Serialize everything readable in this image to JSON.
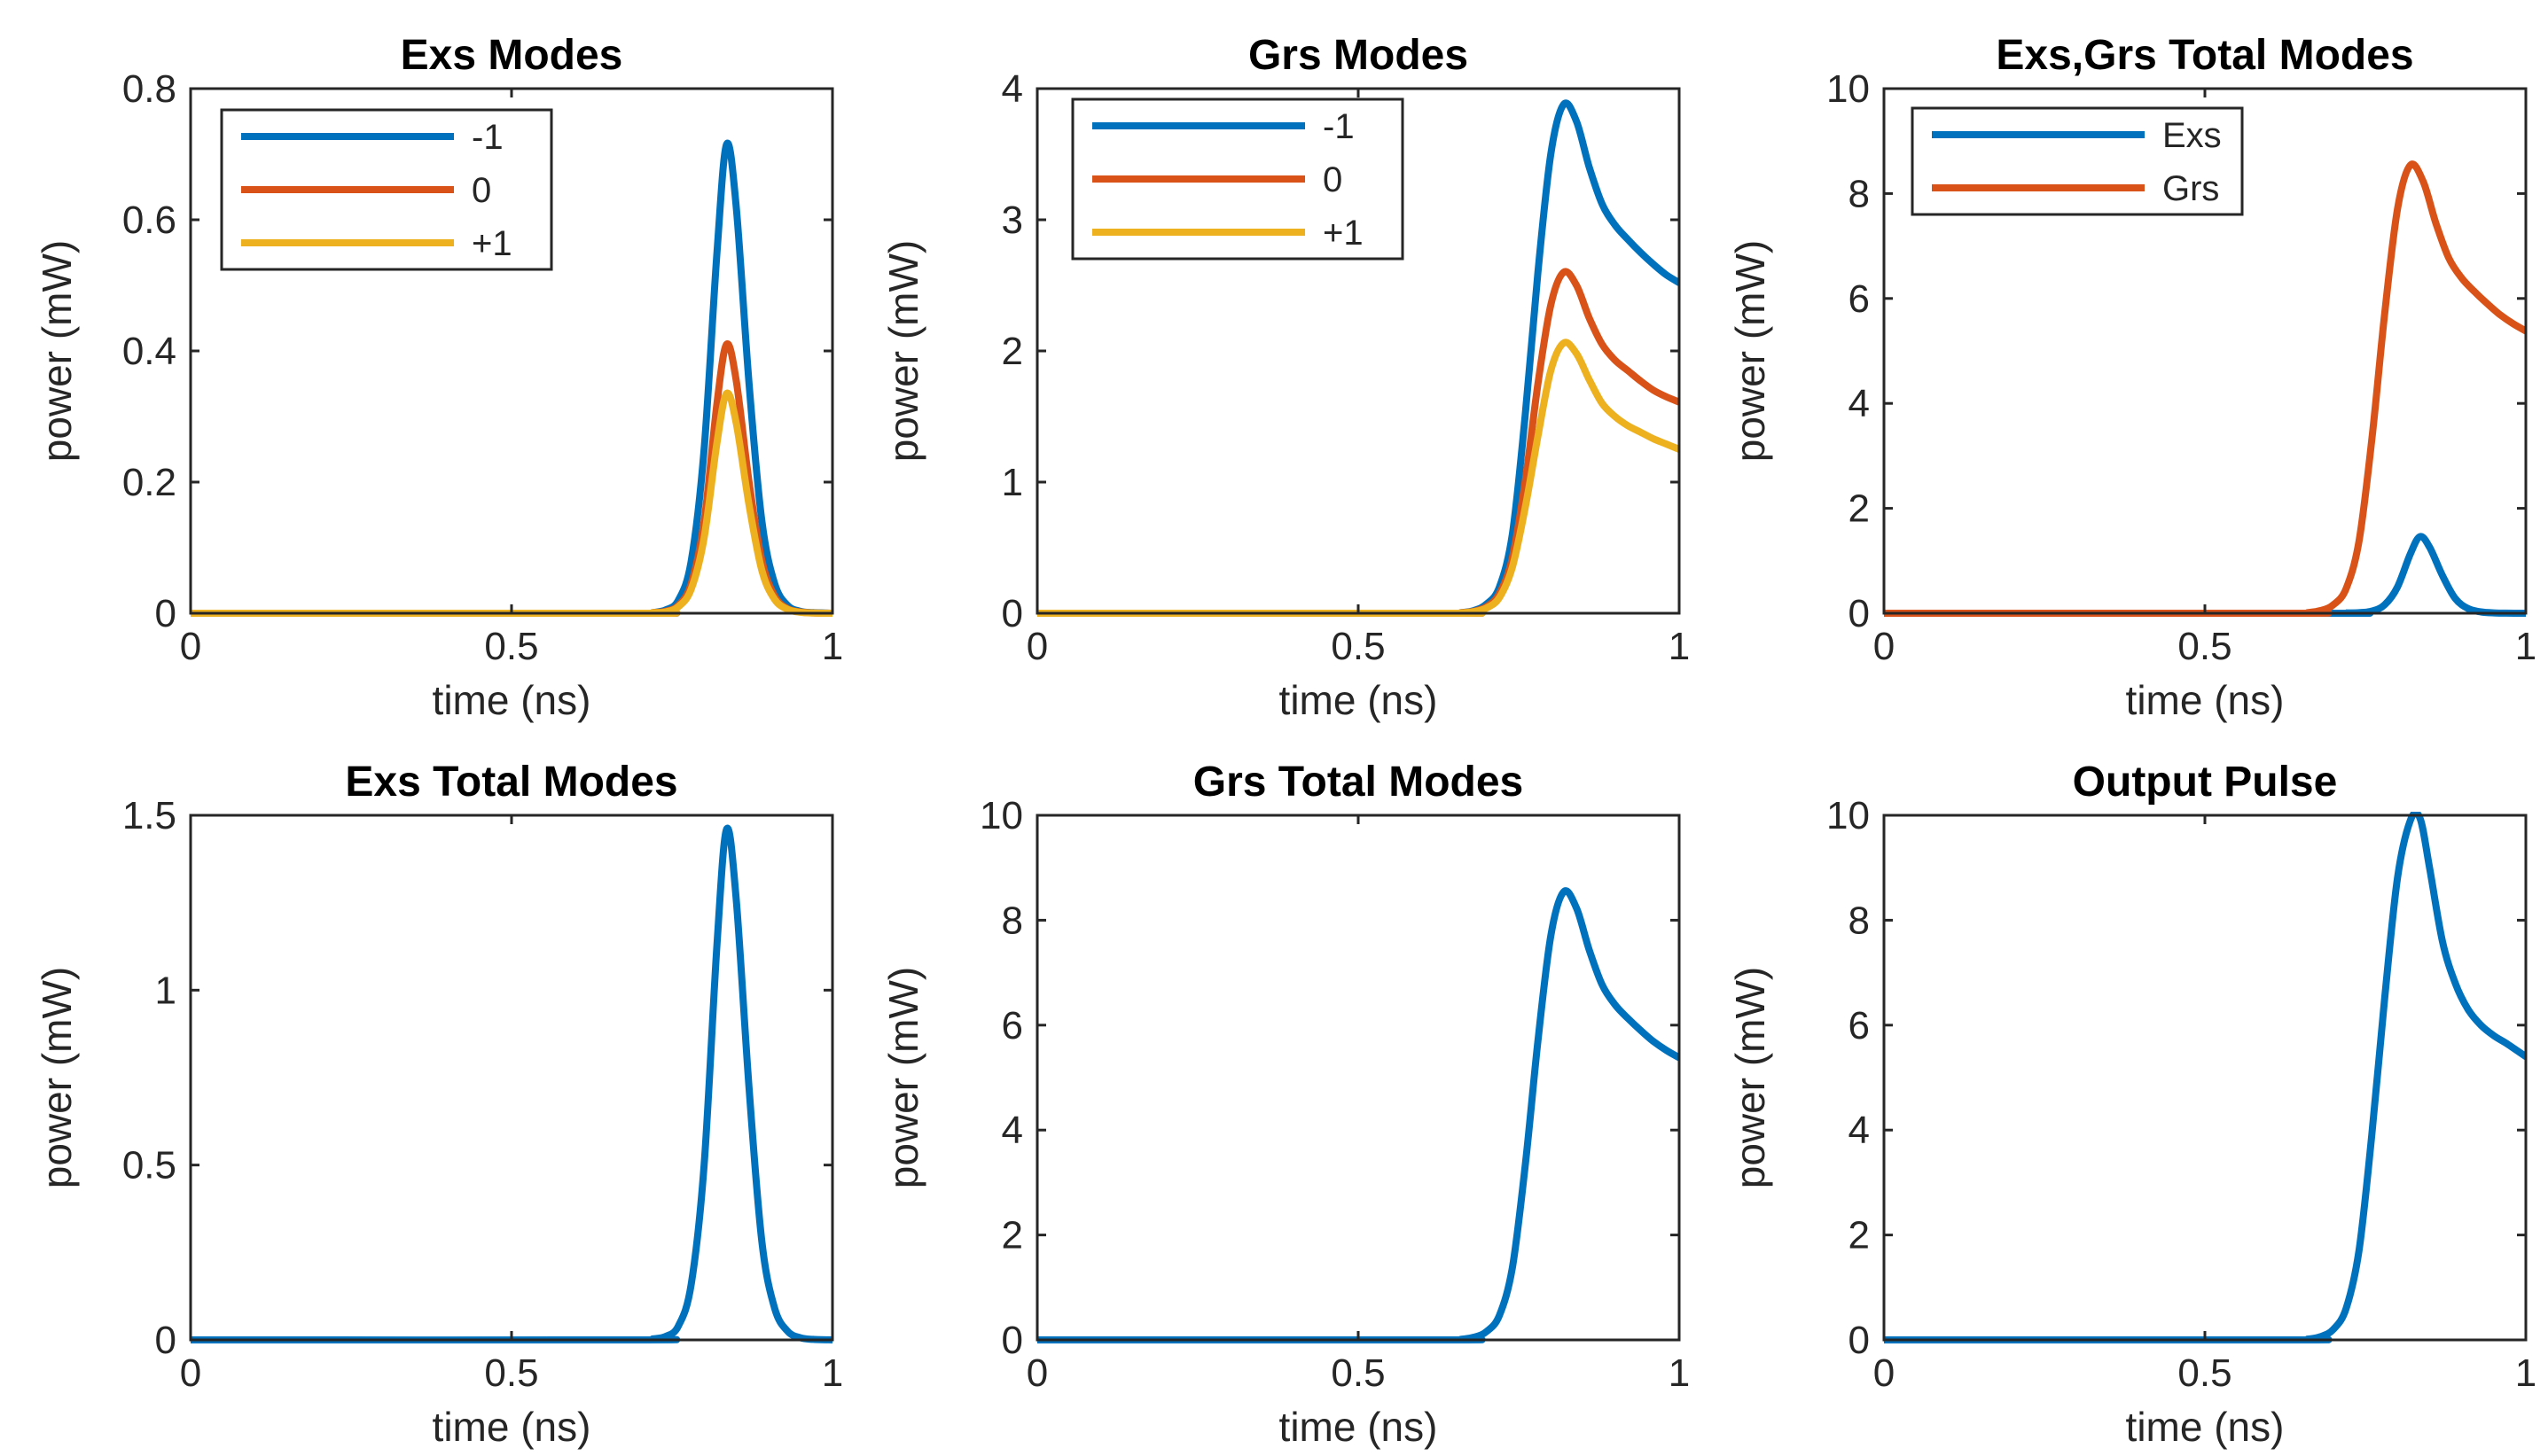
{
  "chart_data": [
    {
      "type": "line",
      "title": "Exs Modes",
      "xlabel": "time (ns)",
      "ylabel": "power (mW)",
      "xlim": [
        0,
        1
      ],
      "ylim": [
        0,
        0.8
      ],
      "xticks": [
        0,
        0.5,
        1
      ],
      "yticks": [
        0,
        0.2,
        0.4,
        0.6,
        0.8
      ],
      "xtick_labels": [
        "0",
        "0.5",
        "1"
      ],
      "ytick_labels": [
        "0",
        "0.2",
        "0.4",
        "0.6",
        "0.8"
      ],
      "legend": "top-left",
      "series": [
        {
          "name": "-1",
          "color": "#0072BD",
          "x": [
            0,
            0.7,
            0.72,
            0.74,
            0.76,
            0.78,
            0.8,
            0.82,
            0.835,
            0.85,
            0.87,
            0.89,
            0.91,
            0.93,
            0.95,
            0.97,
            1.0
          ],
          "y": [
            0,
            0,
            0.001,
            0.005,
            0.02,
            0.08,
            0.25,
            0.55,
            0.715,
            0.62,
            0.35,
            0.14,
            0.045,
            0.012,
            0.003,
            0.001,
            0
          ]
        },
        {
          "name": "0",
          "color": "#D95319",
          "x": [
            0,
            0.7,
            0.72,
            0.74,
            0.76,
            0.78,
            0.8,
            0.82,
            0.835,
            0.85,
            0.87,
            0.89,
            0.91,
            0.93,
            0.95,
            0.97,
            1.0
          ],
          "y": [
            0,
            0,
            0.001,
            0.003,
            0.012,
            0.045,
            0.14,
            0.32,
            0.41,
            0.355,
            0.2,
            0.08,
            0.026,
            0.007,
            0.002,
            0.0005,
            0
          ]
        },
        {
          "name": "+1",
          "color": "#EDB120",
          "x": [
            0,
            0.7,
            0.72,
            0.74,
            0.76,
            0.78,
            0.8,
            0.82,
            0.835,
            0.85,
            0.87,
            0.89,
            0.91,
            0.93,
            0.95,
            0.97,
            1.0
          ],
          "y": [
            0,
            0,
            0.001,
            0.002,
            0.01,
            0.037,
            0.115,
            0.26,
            0.335,
            0.29,
            0.165,
            0.065,
            0.021,
            0.006,
            0.0015,
            0.0004,
            0
          ]
        }
      ]
    },
    {
      "type": "line",
      "title": "Grs Modes",
      "xlabel": "time (ns)",
      "ylabel": "power (mW)",
      "xlim": [
        0,
        1
      ],
      "ylim": [
        0,
        4
      ],
      "xticks": [
        0,
        0.5,
        1
      ],
      "yticks": [
        0,
        1,
        2,
        3,
        4
      ],
      "xtick_labels": [
        "0",
        "0.5",
        "1"
      ],
      "ytick_labels": [
        "0",
        "1",
        "2",
        "3",
        "4"
      ],
      "legend": "top-left",
      "series": [
        {
          "name": "-1",
          "color": "#0072BD",
          "x": [
            0,
            0.64,
            0.66,
            0.68,
            0.7,
            0.72,
            0.74,
            0.76,
            0.78,
            0.8,
            0.82,
            0.84,
            0.86,
            0.88,
            0.9,
            0.92,
            0.94,
            0.96,
            0.98,
            1.0
          ],
          "y": [
            0,
            0,
            0.005,
            0.02,
            0.07,
            0.2,
            0.6,
            1.5,
            2.6,
            3.5,
            3.88,
            3.75,
            3.4,
            3.12,
            2.96,
            2.85,
            2.75,
            2.66,
            2.58,
            2.52
          ]
        },
        {
          "name": "0",
          "color": "#D95319",
          "x": [
            0,
            0.64,
            0.66,
            0.68,
            0.7,
            0.72,
            0.74,
            0.76,
            0.78,
            0.8,
            0.82,
            0.84,
            0.86,
            0.88,
            0.9,
            0.92,
            0.94,
            0.96,
            0.98,
            1.0
          ],
          "y": [
            0,
            0,
            0.004,
            0.015,
            0.05,
            0.15,
            0.42,
            1.0,
            1.75,
            2.35,
            2.6,
            2.5,
            2.25,
            2.05,
            1.93,
            1.85,
            1.77,
            1.7,
            1.65,
            1.61
          ]
        },
        {
          "name": "+1",
          "color": "#EDB120",
          "x": [
            0,
            0.64,
            0.66,
            0.68,
            0.7,
            0.72,
            0.74,
            0.76,
            0.78,
            0.8,
            0.82,
            0.84,
            0.86,
            0.88,
            0.9,
            0.92,
            0.94,
            0.96,
            0.98,
            1.0
          ],
          "y": [
            0,
            0,
            0.003,
            0.012,
            0.04,
            0.12,
            0.35,
            0.8,
            1.35,
            1.85,
            2.06,
            1.98,
            1.78,
            1.6,
            1.5,
            1.43,
            1.38,
            1.33,
            1.29,
            1.25
          ]
        }
      ]
    },
    {
      "type": "line",
      "title": "Exs,Grs Total Modes",
      "xlabel": "time (ns)",
      "ylabel": "power (mW)",
      "xlim": [
        0,
        1
      ],
      "ylim": [
        0,
        10
      ],
      "xticks": [
        0,
        0.5,
        1
      ],
      "yticks": [
        0,
        2,
        4,
        6,
        8,
        10
      ],
      "xtick_labels": [
        "0",
        "0.5",
        "1"
      ],
      "ytick_labels": [
        "0",
        "2",
        "4",
        "6",
        "8",
        "10"
      ],
      "legend": "top-left",
      "series": [
        {
          "name": "Exs",
          "color": "#0072BD",
          "x": [
            0,
            0.7,
            0.72,
            0.74,
            0.76,
            0.78,
            0.8,
            0.82,
            0.835,
            0.85,
            0.87,
            0.89,
            0.91,
            0.93,
            0.95,
            0.97,
            1.0
          ],
          "y": [
            0,
            0,
            0.003,
            0.01,
            0.04,
            0.16,
            0.5,
            1.13,
            1.46,
            1.26,
            0.72,
            0.28,
            0.09,
            0.025,
            0.006,
            0.0015,
            0
          ]
        },
        {
          "name": "Grs",
          "color": "#D95319",
          "x": [
            0,
            0.64,
            0.66,
            0.68,
            0.7,
            0.72,
            0.74,
            0.76,
            0.78,
            0.8,
            0.82,
            0.84,
            0.86,
            0.88,
            0.9,
            0.92,
            0.94,
            0.96,
            0.98,
            1.0
          ],
          "y": [
            0,
            0,
            0.012,
            0.05,
            0.16,
            0.47,
            1.37,
            3.3,
            5.7,
            7.7,
            8.54,
            8.23,
            7.43,
            6.77,
            6.39,
            6.13,
            5.9,
            5.69,
            5.52,
            5.38
          ]
        }
      ]
    },
    {
      "type": "line",
      "title": "Exs Total Modes",
      "xlabel": "time (ns)",
      "ylabel": "power (mW)",
      "xlim": [
        0,
        1
      ],
      "ylim": [
        0,
        1.5
      ],
      "xticks": [
        0,
        0.5,
        1
      ],
      "yticks": [
        0,
        0.5,
        1,
        1.5
      ],
      "xtick_labels": [
        "0",
        "0.5",
        "1"
      ],
      "ytick_labels": [
        "0",
        "0.5",
        "1",
        "1.5"
      ],
      "series": [
        {
          "color": "#0072BD",
          "x": [
            0,
            0.7,
            0.72,
            0.74,
            0.76,
            0.78,
            0.8,
            0.82,
            0.835,
            0.85,
            0.87,
            0.89,
            0.91,
            0.93,
            0.95,
            0.97,
            1.0
          ],
          "y": [
            0,
            0,
            0.003,
            0.01,
            0.04,
            0.16,
            0.5,
            1.13,
            1.46,
            1.26,
            0.72,
            0.28,
            0.09,
            0.025,
            0.006,
            0.0015,
            0
          ]
        }
      ]
    },
    {
      "type": "line",
      "title": "Grs Total Modes",
      "xlabel": "time (ns)",
      "ylabel": "power (mW)",
      "xlim": [
        0,
        1
      ],
      "ylim": [
        0,
        10
      ],
      "xticks": [
        0,
        0.5,
        1
      ],
      "yticks": [
        0,
        2,
        4,
        6,
        8,
        10
      ],
      "xtick_labels": [
        "0",
        "0.5",
        "1"
      ],
      "ytick_labels": [
        "0",
        "2",
        "4",
        "6",
        "8",
        "10"
      ],
      "series": [
        {
          "color": "#0072BD",
          "x": [
            0,
            0.64,
            0.66,
            0.68,
            0.7,
            0.72,
            0.74,
            0.76,
            0.78,
            0.8,
            0.82,
            0.84,
            0.86,
            0.88,
            0.9,
            0.92,
            0.94,
            0.96,
            0.98,
            1.0
          ],
          "y": [
            0,
            0,
            0.012,
            0.05,
            0.16,
            0.47,
            1.37,
            3.3,
            5.7,
            7.7,
            8.54,
            8.23,
            7.43,
            6.77,
            6.39,
            6.13,
            5.9,
            5.69,
            5.52,
            5.38
          ]
        }
      ]
    },
    {
      "type": "line",
      "title": "Output Pulse",
      "xlabel": "time (ns)",
      "ylabel": "power (mW)",
      "xlim": [
        0,
        1
      ],
      "ylim": [
        0,
        10
      ],
      "xticks": [
        0,
        0.5,
        1
      ],
      "yticks": [
        0,
        2,
        4,
        6,
        8,
        10
      ],
      "xtick_labels": [
        "0",
        "0.5",
        "1"
      ],
      "ytick_labels": [
        "0",
        "2",
        "4",
        "6",
        "8",
        "10"
      ],
      "series": [
        {
          "color": "#0072BD",
          "x": [
            0,
            0.64,
            0.66,
            0.68,
            0.7,
            0.72,
            0.74,
            0.76,
            0.78,
            0.8,
            0.82,
            0.835,
            0.85,
            0.87,
            0.89,
            0.91,
            0.93,
            0.95,
            0.97,
            1.0
          ],
          "y": [
            0,
            0,
            0.015,
            0.06,
            0.2,
            0.6,
            1.7,
            3.9,
            6.5,
            8.8,
            9.9,
            9.95,
            9.0,
            7.6,
            6.8,
            6.3,
            6.0,
            5.8,
            5.65,
            5.4
          ]
        }
      ]
    }
  ]
}
